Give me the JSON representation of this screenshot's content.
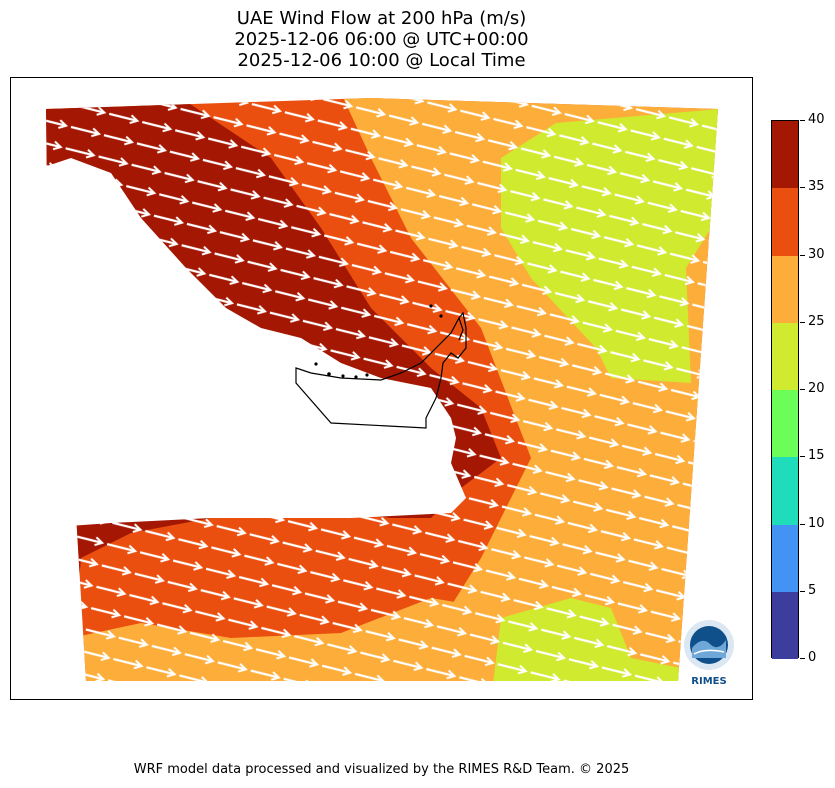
{
  "title": {
    "line1": "UAE Wind Flow at 200 hPa (m/s)",
    "line2": "2025-12-06 06:00 @ UTC+00:00",
    "line3": "2025-12-06 10:00 @ Local Time"
  },
  "colorbar": {
    "min": 0,
    "max": 40,
    "ticks": [
      "0",
      "5",
      "10",
      "15",
      "20",
      "25",
      "30",
      "35",
      "40"
    ],
    "levels": [
      {
        "from": 0,
        "to": 5,
        "color": "#3d3d9e"
      },
      {
        "from": 5,
        "to": 10,
        "color": "#4393f5"
      },
      {
        "from": 10,
        "to": 15,
        "color": "#1fdcbb"
      },
      {
        "from": 15,
        "to": 20,
        "color": "#6bfd58"
      },
      {
        "from": 20,
        "to": 25,
        "color": "#cfea2f"
      },
      {
        "from": 25,
        "to": 30,
        "color": "#fdad3a"
      },
      {
        "from": 30,
        "to": 35,
        "color": "#ea4f0f"
      },
      {
        "from": 35,
        "to": 40,
        "color": "#a41703"
      }
    ]
  },
  "logo": {
    "text": "RIMES",
    "ring_text": "Regional Integrated Multi-Hazard Early Warning System"
  },
  "footer": "WRF model data processed and visualized by the RIMES R&D Team. © 2025"
}
